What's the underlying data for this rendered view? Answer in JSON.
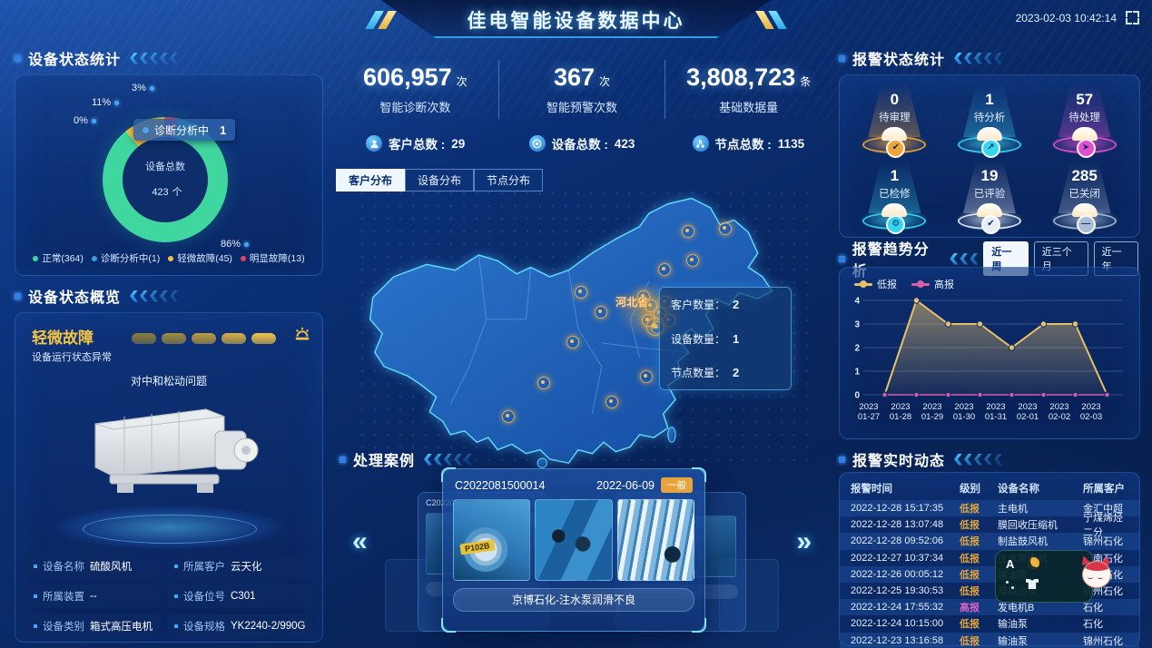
{
  "header": {
    "title": "佳电智能设备数据中心",
    "timestamp": "2023-02-03 10:42:14"
  },
  "icons": {
    "prev": "«",
    "next": "»"
  },
  "overlay": {
    "mascot_label": "A"
  },
  "left": {
    "device_status": {
      "title": "设备状态统计",
      "tooltip_label": "诊断分析中",
      "tooltip_value": "1",
      "center_label": "设备总数",
      "center_value": "423",
      "center_unit": "个",
      "percent_labels": [
        "3%",
        "11%",
        "0%",
        "86%"
      ],
      "legend": [
        {
          "label": "正常(364)",
          "color": "#3fd6a0"
        },
        {
          "label": "诊断分析中(1)",
          "color": "#3e9be0"
        },
        {
          "label": "轻微故障(45)",
          "color": "#f3c23c"
        },
        {
          "label": "明显故障(13)",
          "color": "#e34360"
        }
      ]
    },
    "device_overview": {
      "title": "设备状态概览",
      "status": "轻微故障",
      "status_desc": "设备运行状态异常",
      "issue": "对中和松动问题",
      "fields": [
        {
          "label": "设备名称",
          "value": "硫酸风机"
        },
        {
          "label": "所属客户",
          "value": "云天化"
        },
        {
          "label": "所属装置",
          "value": "--"
        },
        {
          "label": "设备位号",
          "value": "C301"
        },
        {
          "label": "设备类别",
          "value": "箱式高压电机"
        },
        {
          "label": "设备规格",
          "value": "YK2240-2/990G"
        }
      ]
    }
  },
  "center": {
    "stats": [
      {
        "value": "606,957",
        "unit": "次",
        "label": "智能诊断次数"
      },
      {
        "value": "367",
        "unit": "次",
        "label": "智能预警次数"
      },
      {
        "value": "3,808,723",
        "unit": "条",
        "label": "基础数据量"
      }
    ],
    "totals": [
      {
        "icon": "customer-icon",
        "label": "客户总数",
        "value": "29"
      },
      {
        "icon": "device-icon",
        "label": "设备总数",
        "value": "423"
      },
      {
        "icon": "node-icon",
        "label": "节点总数",
        "value": "1135"
      }
    ],
    "map_tabs": [
      {
        "label": "客户分布",
        "active": true
      },
      {
        "label": "设备分布",
        "active": false
      },
      {
        "label": "节点分布",
        "active": false
      }
    ],
    "map": {
      "province_label": "河北省",
      "tooltip": [
        {
          "label": "客户数量",
          "value": "2"
        },
        {
          "label": "设备数量",
          "value": "1"
        },
        {
          "label": "节点数量",
          "value": "2"
        }
      ]
    },
    "cases": {
      "title": "处理案例",
      "card": {
        "code": "C2022081500014",
        "date": "2022-06-09",
        "severity": "一般",
        "caption": "京博石化-注水泵润滑不良",
        "photo_tag": "P102B"
      },
      "ghost_left": {
        "code": "C20220815"
      },
      "ghost_right": {
        "date": "0-17",
        "severity": "严重"
      }
    }
  },
  "right": {
    "alarm_status": {
      "title": "报警状态统计",
      "items": [
        {
          "value": "0",
          "label": "待审理",
          "color": "#f0a53a",
          "icon": "check-icon",
          "glyph": "✔"
        },
        {
          "value": "1",
          "label": "待分析",
          "color": "#38d4f2",
          "icon": "analyze-icon",
          "glyph": "↗"
        },
        {
          "value": "57",
          "label": "待处理",
          "color": "#e44fd0",
          "icon": "send-icon",
          "glyph": "➤"
        },
        {
          "value": "1",
          "label": "已检修",
          "color": "#38d4f2",
          "icon": "repair-icon",
          "glyph": "⚙"
        },
        {
          "value": "19",
          "label": "已评验",
          "color": "#e6eef8",
          "icon": "check-icon",
          "glyph": "✔"
        },
        {
          "value": "285",
          "label": "已关闭",
          "color": "#a9bdd6",
          "icon": "minus-icon",
          "glyph": "—"
        }
      ]
    },
    "alarm_trend": {
      "title": "报警趋势分析",
      "buttons": [
        {
          "label": "近一周",
          "active": true
        },
        {
          "label": "近三个月",
          "active": false
        },
        {
          "label": "近一年",
          "active": false
        }
      ]
    },
    "alarm_feed": {
      "title": "报警实时动态",
      "columns": [
        "报警时间",
        "级别",
        "设备名称",
        "所属客户"
      ],
      "level_colors": {
        "低报": "#e0a43c",
        "高报": "#d862c8"
      },
      "rows": [
        {
          "time": "2022-12-28 15:17:35",
          "level": "低报",
          "device": "主电机",
          "customer": "金汇中超"
        },
        {
          "time": "2022-12-28 13:07:48",
          "level": "低报",
          "device": "膜回收压缩机",
          "customer": "宁煤烯烃二分"
        },
        {
          "time": "2022-12-28 09:52:06",
          "level": "低报",
          "device": "制盐鼓风机",
          "customer": "锦州石化"
        },
        {
          "time": "2022-12-27 10:37:34",
          "level": "低报",
          "device": "注水泵电机",
          "customer": "云南石化"
        },
        {
          "time": "2022-12-26 00:05:12",
          "level": "低报",
          "device": "输油泵",
          "customer": "锦州石化"
        },
        {
          "time": "2022-12-25 19:30:53",
          "level": "低报",
          "device": "原料油泵",
          "customer": "锦州石化"
        },
        {
          "time": "2022-12-24 17:55:32",
          "level": "高报",
          "device": "发电机B",
          "customer": "石化"
        },
        {
          "time": "2022-12-24 10:15:00",
          "level": "低报",
          "device": "输油泵",
          "customer": "石化"
        },
        {
          "time": "2022-12-23 13:16:58",
          "level": "低报",
          "device": "输油泵",
          "customer": "锦州石化"
        }
      ]
    }
  },
  "chart_data": [
    {
      "id": "device-status-donut",
      "type": "pie",
      "title": "设备状态统计",
      "labels": [
        "正常",
        "诊断分析中",
        "轻微故障",
        "明显故障"
      ],
      "values": [
        364,
        1,
        45,
        13
      ],
      "percents": [
        "86%",
        "0%",
        "11%",
        "3%"
      ],
      "colors": [
        "#3fd6a0",
        "#3e9be0",
        "#f3c23c",
        "#e34360"
      ],
      "center_label": "设备总数",
      "center_value": 423,
      "center_unit": "个"
    },
    {
      "id": "alarm-trend-line",
      "type": "line",
      "title": "报警趋势分析",
      "x": [
        "2023 01-27",
        "2023 01-28",
        "2023 01-29",
        "2023 01-30",
        "2023 01-31",
        "2023 02-01",
        "2023 02-02",
        "2023 02-03"
      ],
      "series": [
        {
          "name": "低报",
          "color": "#e6c06a",
          "values": [
            0,
            4,
            3,
            3,
            2,
            3,
            3,
            0
          ],
          "area": true
        },
        {
          "name": "高报",
          "color": "#d85fa8",
          "values": [
            0,
            0,
            0,
            0,
            0,
            0,
            0,
            0
          ],
          "area": false
        }
      ],
      "ylim": [
        0,
        4
      ],
      "yticks": [
        0,
        1,
        2,
        3,
        4
      ],
      "grid": true,
      "legend_position": "top-left"
    }
  ]
}
